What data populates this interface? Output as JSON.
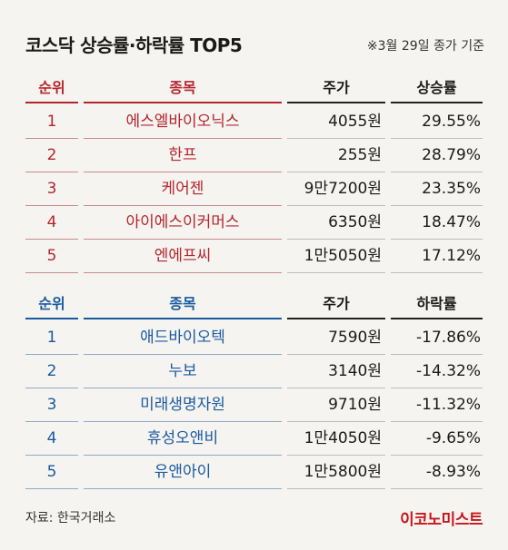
{
  "header": {
    "title": "코스닥 상승률·하락률 TOP5",
    "note": "※3월 29일 종가 기준"
  },
  "gainers": {
    "headers": {
      "rank": "순위",
      "name": "종목",
      "price": "주가",
      "rate": "상승률"
    },
    "rows": [
      {
        "rank": "1",
        "name": "에스엘바이오닉스",
        "price": "4055원",
        "rate": "29.55%"
      },
      {
        "rank": "2",
        "name": "한프",
        "price": "255원",
        "rate": "28.79%"
      },
      {
        "rank": "3",
        "name": "케어젠",
        "price": "9만7200원",
        "rate": "23.35%"
      },
      {
        "rank": "4",
        "name": "아이에스이커머스",
        "price": "6350원",
        "rate": "18.47%"
      },
      {
        "rank": "5",
        "name": "엔에프씨",
        "price": "1만5050원",
        "rate": "17.12%"
      }
    ]
  },
  "losers": {
    "headers": {
      "rank": "순위",
      "name": "종목",
      "price": "주가",
      "rate": "하락률"
    },
    "rows": [
      {
        "rank": "1",
        "name": "애드바이오텍",
        "price": "7590원",
        "rate": "-17.86%"
      },
      {
        "rank": "2",
        "name": "누보",
        "price": "3140원",
        "rate": "-14.32%"
      },
      {
        "rank": "3",
        "name": "미래생명자원",
        "price": "9710원",
        "rate": "-11.32%"
      },
      {
        "rank": "4",
        "name": "휴성오앤비",
        "price": "1만4050원",
        "rate": "-9.65%"
      },
      {
        "rank": "5",
        "name": "유앤아이",
        "price": "1만5800원",
        "rate": "-8.93%"
      }
    ]
  },
  "footer": {
    "source": "자료: 한국거래소",
    "brand": "이코노미스트"
  },
  "colors": {
    "gainers_accent": "#b5252e",
    "losers_accent": "#1a5aa0",
    "brand": "#c8161d"
  }
}
